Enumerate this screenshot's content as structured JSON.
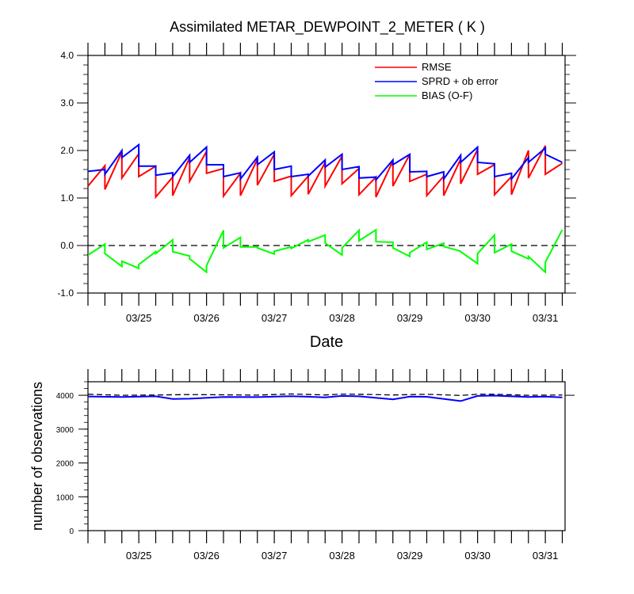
{
  "chart_data": [
    {
      "type": "line",
      "title": "Assimilated METAR_DEWPOINT_2_METER ( K )",
      "xlabel": "Date",
      "ylabel": "",
      "x_tick_labels": [
        "03/25",
        "03/26",
        "03/27",
        "03/28",
        "03/29",
        "03/30",
        "03/31"
      ],
      "y_tick_labels": [
        "4.0",
        "3.0",
        "2.0",
        "1.0",
        "0.0",
        "-1.0"
      ],
      "ylim": [
        -1.0,
        4.0
      ],
      "xlim_days": [
        0,
        7
      ],
      "zero_line": true,
      "legend_position": "top-right",
      "series": [
        {
          "name": "RMSE",
          "color": "#ff0000",
          "x": [
            0,
            0.25,
            0.25,
            0.5,
            0.5,
            0.75,
            0.75,
            1.0,
            1.0,
            1.25,
            1.25,
            1.5,
            1.5,
            1.75,
            1.75,
            2.0,
            2.0,
            2.25,
            2.25,
            2.5,
            2.5,
            2.75,
            2.75,
            3.0,
            3.0,
            3.25,
            3.25,
            3.5,
            3.5,
            3.75,
            3.75,
            4.0,
            4.0,
            4.25,
            4.25,
            4.5,
            4.5,
            4.75,
            4.75,
            5.0,
            5.0,
            5.25,
            5.25,
            5.5,
            5.5,
            5.75,
            5.75,
            6.0,
            6.0,
            6.25,
            6.25,
            6.5,
            6.5,
            6.75,
            6.75,
            7.0
          ],
          "values": [
            1.25,
            1.68,
            1.18,
            1.97,
            1.42,
            1.93,
            1.45,
            1.67,
            1.02,
            1.44,
            1.05,
            1.85,
            1.35,
            1.98,
            1.52,
            1.62,
            1.04,
            1.52,
            1.05,
            1.82,
            1.27,
            1.92,
            1.35,
            1.46,
            1.05,
            1.46,
            1.08,
            1.75,
            1.25,
            1.88,
            1.3,
            1.62,
            1.07,
            1.44,
            1.02,
            1.78,
            1.25,
            1.92,
            1.35,
            1.5,
            1.05,
            1.46,
            1.05,
            1.82,
            1.3,
            2.02,
            1.5,
            1.7,
            1.07,
            1.45,
            1.07,
            2.0,
            1.42,
            2.1,
            1.5,
            1.73
          ]
        },
        {
          "name": "SPRD + ob error",
          "color": "#0000ff",
          "x": [
            0,
            0.25,
            0.25,
            0.5,
            0.5,
            0.75,
            0.75,
            1.0,
            1.0,
            1.25,
            1.25,
            1.5,
            1.5,
            1.75,
            1.75,
            2.0,
            2.0,
            2.25,
            2.25,
            2.5,
            2.5,
            2.75,
            2.75,
            3.0,
            3.0,
            3.25,
            3.25,
            3.5,
            3.5,
            3.75,
            3.75,
            4.0,
            4.0,
            4.25,
            4.25,
            4.5,
            4.5,
            4.75,
            4.75,
            5.0,
            5.0,
            5.25,
            5.25,
            5.5,
            5.5,
            5.75,
            5.75,
            6.0,
            6.0,
            6.25,
            6.25,
            6.5,
            6.5,
            6.75,
            6.75,
            7.0
          ],
          "values": [
            1.56,
            1.6,
            1.5,
            2.0,
            1.85,
            2.12,
            1.67,
            1.67,
            1.48,
            1.53,
            1.45,
            1.9,
            1.75,
            2.07,
            1.7,
            1.7,
            1.45,
            1.53,
            1.4,
            1.86,
            1.7,
            1.97,
            1.6,
            1.67,
            1.45,
            1.5,
            1.46,
            1.8,
            1.65,
            1.92,
            1.6,
            1.66,
            1.42,
            1.44,
            1.38,
            1.8,
            1.7,
            1.92,
            1.55,
            1.56,
            1.45,
            1.55,
            1.4,
            1.9,
            1.75,
            2.07,
            1.75,
            1.72,
            1.45,
            1.52,
            1.4,
            1.85,
            1.75,
            2.05,
            1.92,
            1.75
          ]
        },
        {
          "name": "BIAS (O-F)",
          "color": "#00ff00",
          "x": [
            0,
            0.25,
            0.25,
            0.5,
            0.5,
            0.75,
            0.75,
            1.0,
            1.0,
            1.25,
            1.25,
            1.5,
            1.5,
            1.75,
            1.75,
            2.0,
            2.0,
            2.25,
            2.25,
            2.5,
            2.5,
            2.75,
            2.75,
            3.0,
            3.0,
            3.25,
            3.25,
            3.5,
            3.5,
            3.75,
            3.75,
            4.0,
            4.0,
            4.25,
            4.25,
            4.5,
            4.5,
            4.75,
            4.75,
            5.0,
            5.0,
            5.25,
            5.25,
            5.5,
            5.5,
            5.75,
            5.75,
            6.0,
            6.0,
            6.25,
            6.25,
            6.5,
            6.5,
            6.75,
            6.75,
            7.0
          ],
          "values": [
            -0.2,
            0.03,
            -0.17,
            -0.44,
            -0.33,
            -0.48,
            -0.4,
            -0.13,
            -0.17,
            0.12,
            -0.13,
            -0.22,
            -0.28,
            -0.56,
            -0.42,
            0.32,
            -0.05,
            0.17,
            -0.03,
            -0.03,
            -0.05,
            -0.18,
            -0.12,
            -0.03,
            -0.06,
            0.12,
            0.08,
            0.22,
            0.05,
            -0.2,
            -0.05,
            0.32,
            0.1,
            0.33,
            0.08,
            0.07,
            -0.05,
            -0.23,
            -0.15,
            0.07,
            -0.08,
            0.05,
            -0.02,
            -0.12,
            -0.13,
            -0.38,
            -0.17,
            0.22,
            -0.15,
            0.03,
            -0.12,
            -0.28,
            -0.23,
            -0.56,
            -0.35,
            0.33
          ]
        }
      ]
    },
    {
      "type": "line",
      "title": "",
      "xlabel": "",
      "ylabel": "number of observations",
      "x_tick_labels": [
        "03/25",
        "03/26",
        "03/27",
        "03/28",
        "03/29",
        "03/30",
        "03/31"
      ],
      "y_tick_labels": [
        "4000",
        "3000",
        "2000",
        "1000",
        "0"
      ],
      "ylim": [
        0,
        4400
      ],
      "xlim_days": [
        0,
        7
      ],
      "reference_line_value": 4000,
      "series": [
        {
          "color": "#0000ff",
          "x": [
            0,
            0.5,
            1.0,
            1.25,
            1.5,
            2.0,
            2.5,
            3.0,
            3.5,
            3.75,
            4.0,
            4.5,
            4.75,
            5.0,
            5.5,
            5.75,
            6.0,
            6.5,
            6.75,
            7.0
          ],
          "values": [
            3965,
            3950,
            3970,
            3890,
            3900,
            3950,
            3945,
            3975,
            3940,
            3980,
            3970,
            3880,
            3960,
            3955,
            3830,
            3980,
            3990,
            3950,
            3960,
            3940
          ]
        },
        {
          "color": "#000000",
          "dashed": true,
          "x": [
            0,
            0.5,
            1.0,
            1.5,
            2.0,
            2.5,
            3.0,
            3.5,
            3.75,
            4.0,
            4.5,
            5.0,
            5.5,
            5.75,
            6.0,
            6.5,
            7.0
          ],
          "values": [
            4030,
            4000,
            4010,
            4020,
            4015,
            4005,
            4040,
            4010,
            4035,
            4030,
            4010,
            4030,
            3995,
            4030,
            4030,
            4000,
            4010
          ]
        }
      ]
    }
  ]
}
